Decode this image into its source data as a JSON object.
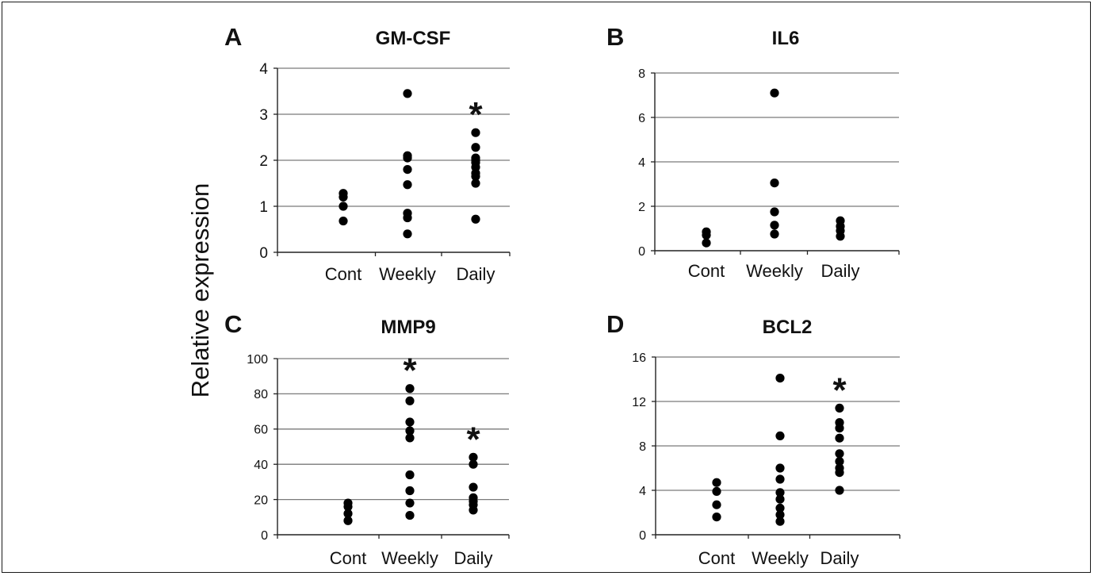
{
  "y_axis_label": "Relative expression",
  "chart_data": [
    {
      "type": "scatter",
      "panel": "A",
      "title": "GM-CSF",
      "categories": [
        "Cont",
        "Weekly",
        "Daily"
      ],
      "ylim": [
        0,
        4
      ],
      "yticks": [
        0,
        1,
        2,
        3,
        4
      ],
      "grid": true,
      "points": [
        [
          1.28,
          1.2,
          1.0,
          0.68
        ],
        [
          3.45,
          2.1,
          2.05,
          1.8,
          1.47,
          0.85,
          0.75,
          0.4
        ],
        [
          2.6,
          2.28,
          2.05,
          2.0,
          1.95,
          1.85,
          1.72,
          1.65,
          1.5,
          0.72
        ]
      ],
      "significant": [
        false,
        false,
        true
      ],
      "marker": "*"
    },
    {
      "type": "scatter",
      "panel": "B",
      "title": "IL6",
      "categories": [
        "Cont",
        "Weekly",
        "Daily"
      ],
      "ylim": [
        0,
        8
      ],
      "yticks": [
        0,
        2,
        4,
        6,
        8
      ],
      "grid": true,
      "points": [
        [
          0.85,
          0.7,
          0.35
        ],
        [
          7.1,
          3.05,
          1.75,
          1.15,
          0.75
        ],
        [
          1.35,
          1.1,
          0.9,
          0.65
        ]
      ],
      "significant": [
        false,
        false,
        false
      ],
      "marker": "*"
    },
    {
      "type": "scatter",
      "panel": "C",
      "title": "MMP9",
      "categories": [
        "Cont",
        "Weekly",
        "Daily"
      ],
      "ylim": [
        0,
        100
      ],
      "yticks": [
        0,
        20,
        40,
        60,
        80,
        100
      ],
      "grid": true,
      "points": [
        [
          18,
          16,
          12,
          8
        ],
        [
          83,
          76,
          64,
          59,
          55,
          34,
          25,
          18,
          11
        ],
        [
          44,
          40,
          27,
          21,
          19,
          17,
          14
        ]
      ],
      "significant": [
        false,
        true,
        true
      ],
      "marker": "*"
    },
    {
      "type": "scatter",
      "panel": "D",
      "title": "BCL2",
      "categories": [
        "Cont",
        "Weekly",
        "Daily"
      ],
      "ylim": [
        0,
        16
      ],
      "yticks": [
        0,
        4,
        8,
        12,
        16
      ],
      "grid": true,
      "points": [
        [
          4.7,
          3.9,
          2.7,
          1.6
        ],
        [
          14.1,
          8.9,
          6.0,
          5.0,
          3.8,
          3.2,
          2.4,
          1.8,
          1.2
        ],
        [
          11.4,
          10.1,
          9.6,
          8.7,
          7.3,
          6.6,
          6.0,
          5.6,
          4.0
        ]
      ],
      "significant": [
        false,
        false,
        true
      ],
      "marker": "*"
    }
  ]
}
